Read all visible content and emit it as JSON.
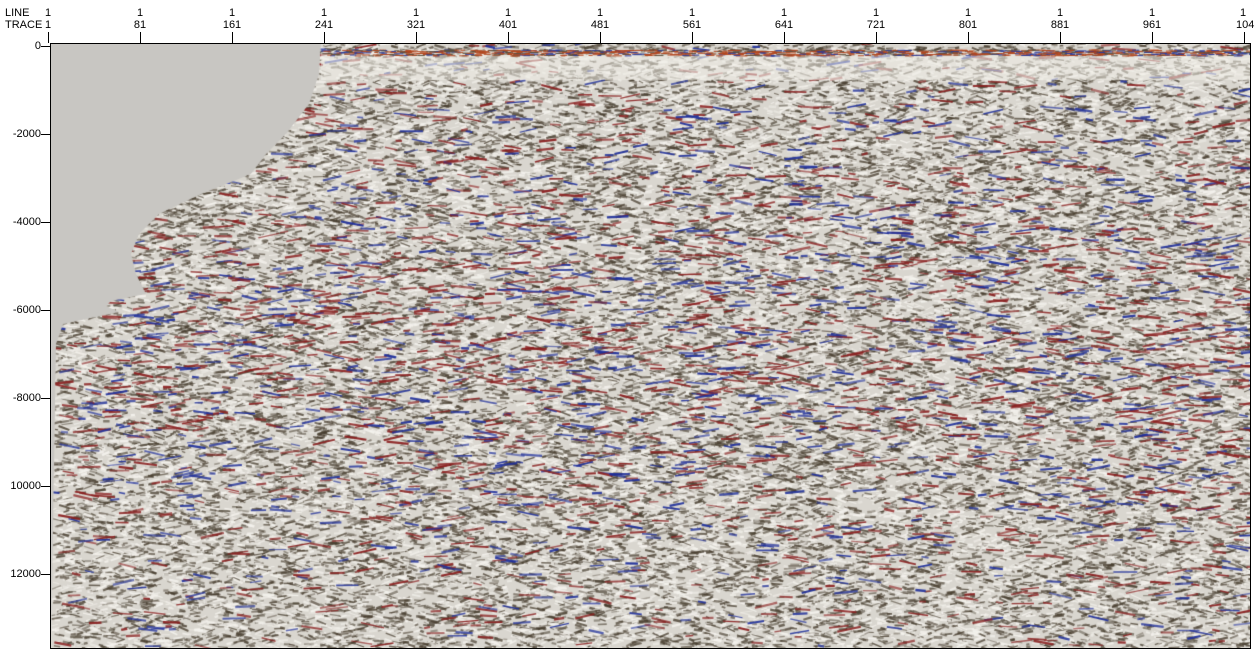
{
  "header": {
    "line_label": "LINE",
    "trace_label": "TRACE"
  },
  "axis": {
    "top_line_values": [
      "1",
      "1",
      "1",
      "1",
      "1",
      "1",
      "1",
      "1",
      "1",
      "1",
      "1",
      "1",
      "1",
      "1"
    ],
    "top_trace_values": [
      "1",
      "81",
      "161",
      "241",
      "321",
      "401",
      "481",
      "561",
      "641",
      "721",
      "801",
      "881",
      "961",
      "104"
    ],
    "left_values": [
      "0",
      "-2000",
      "-4000",
      "-6000",
      "-8000",
      "10000",
      "12000"
    ]
  },
  "colors": {
    "background": "#ffffff",
    "no_data_fill": "#c8c6c2",
    "positive_amplitude": "#8a1f1f",
    "negative_amplitude": "#1f2f9a",
    "mid_tone": "#d9d6cf",
    "dark_tone": "#5b4f3e"
  }
}
